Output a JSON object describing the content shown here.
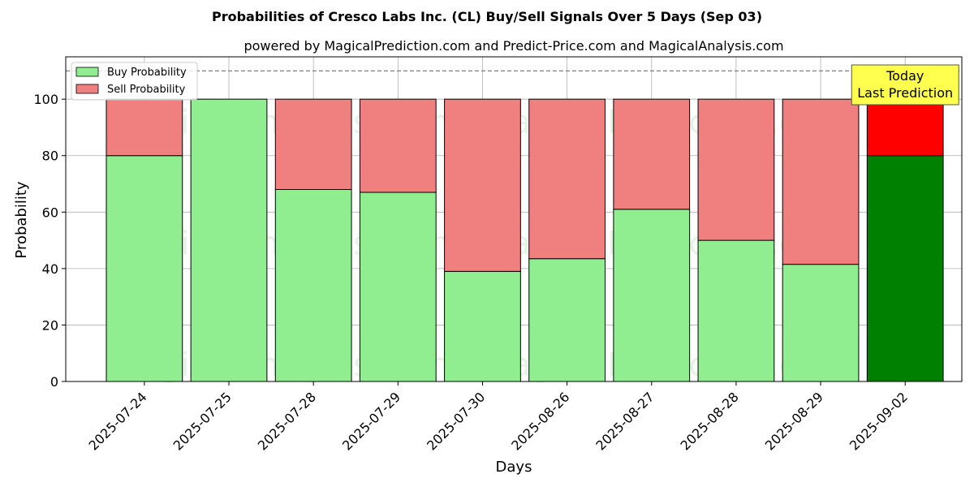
{
  "chart_data": {
    "type": "bar",
    "stacked": true,
    "title": "Probabilities of Cresco Labs Inc. (CL) Buy/Sell Signals Over 5 Days (Sep 03)",
    "subtitle": "powered by MagicalPrediction.com and Predict-Price.com and MagicalAnalysis.com",
    "xlabel": "Days",
    "ylabel": "Probability",
    "ylim": [
      0,
      115
    ],
    "yticks": [
      0,
      20,
      40,
      60,
      80,
      100
    ],
    "categories": [
      "2025-07-24",
      "2025-07-25",
      "2025-07-28",
      "2025-07-29",
      "2025-07-30",
      "2025-08-26",
      "2025-08-27",
      "2025-08-28",
      "2025-08-29",
      "2025-09-02"
    ],
    "series": [
      {
        "name": "Buy Probability",
        "color": "#90ee90",
        "values": [
          80,
          100,
          68,
          67,
          39,
          43.5,
          61,
          50,
          41.5,
          80
        ]
      },
      {
        "name": "Sell Probability",
        "color": "#f08080",
        "values": [
          20,
          0,
          32,
          33,
          61,
          56.5,
          39,
          50,
          58.5,
          20
        ]
      }
    ],
    "highlight": {
      "index": 9,
      "buy_color": "#008000",
      "sell_color": "#ff0000"
    },
    "reference_line": {
      "y": 110,
      "style": "dashed",
      "color": "#808080"
    },
    "grid": true,
    "legend_position": "top-left",
    "annotation": {
      "lines": [
        "Today",
        "Last Prediction"
      ],
      "background": "#ffff4d"
    },
    "watermarks": [
      "MagicalAnalysis.com",
      "MagicalPrediction.com"
    ]
  }
}
